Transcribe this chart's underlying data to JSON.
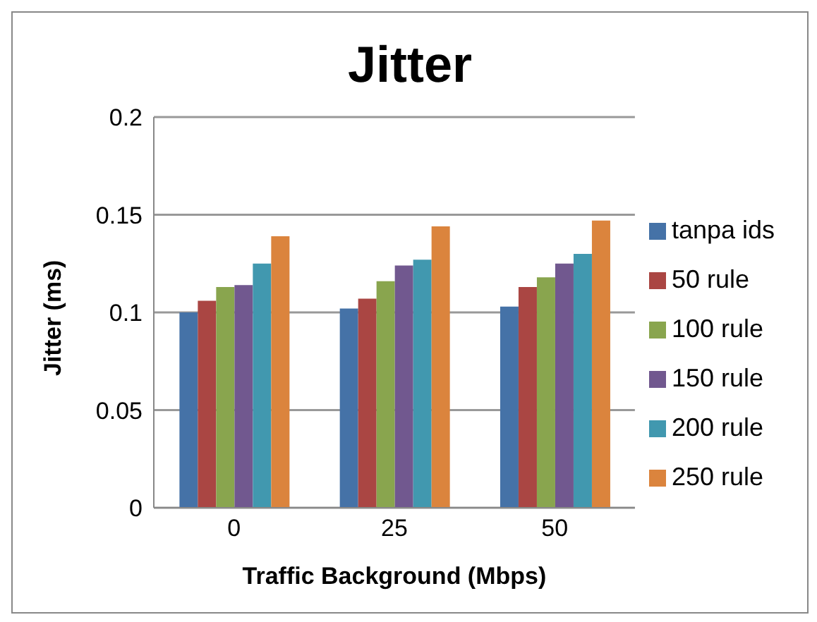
{
  "chart_data": {
    "type": "bar",
    "title": "Jitter",
    "xlabel": "Traffic Background (Mbps)",
    "ylabel": "Jitter (ms)",
    "categories": [
      "0",
      "25",
      "50"
    ],
    "series": [
      {
        "name": "tanpa ids",
        "color": "#4572a7",
        "values": [
          0.1,
          0.102,
          0.103
        ]
      },
      {
        "name": "50 rule",
        "color": "#aa4643",
        "values": [
          0.106,
          0.107,
          0.113
        ]
      },
      {
        "name": "100 rule",
        "color": "#89a54e",
        "values": [
          0.113,
          0.116,
          0.118
        ]
      },
      {
        "name": "150 rule",
        "color": "#71588f",
        "values": [
          0.114,
          0.124,
          0.125
        ]
      },
      {
        "name": "200 rule",
        "color": "#4198af",
        "values": [
          0.125,
          0.127,
          0.13
        ]
      },
      {
        "name": "250 rule",
        "color": "#db843d",
        "values": [
          0.139,
          0.144,
          0.147
        ]
      }
    ],
    "ylim": [
      0,
      0.2
    ],
    "yticks": [
      0,
      0.05,
      0.1,
      0.15,
      0.2
    ],
    "grid": "y",
    "legend": "right"
  }
}
